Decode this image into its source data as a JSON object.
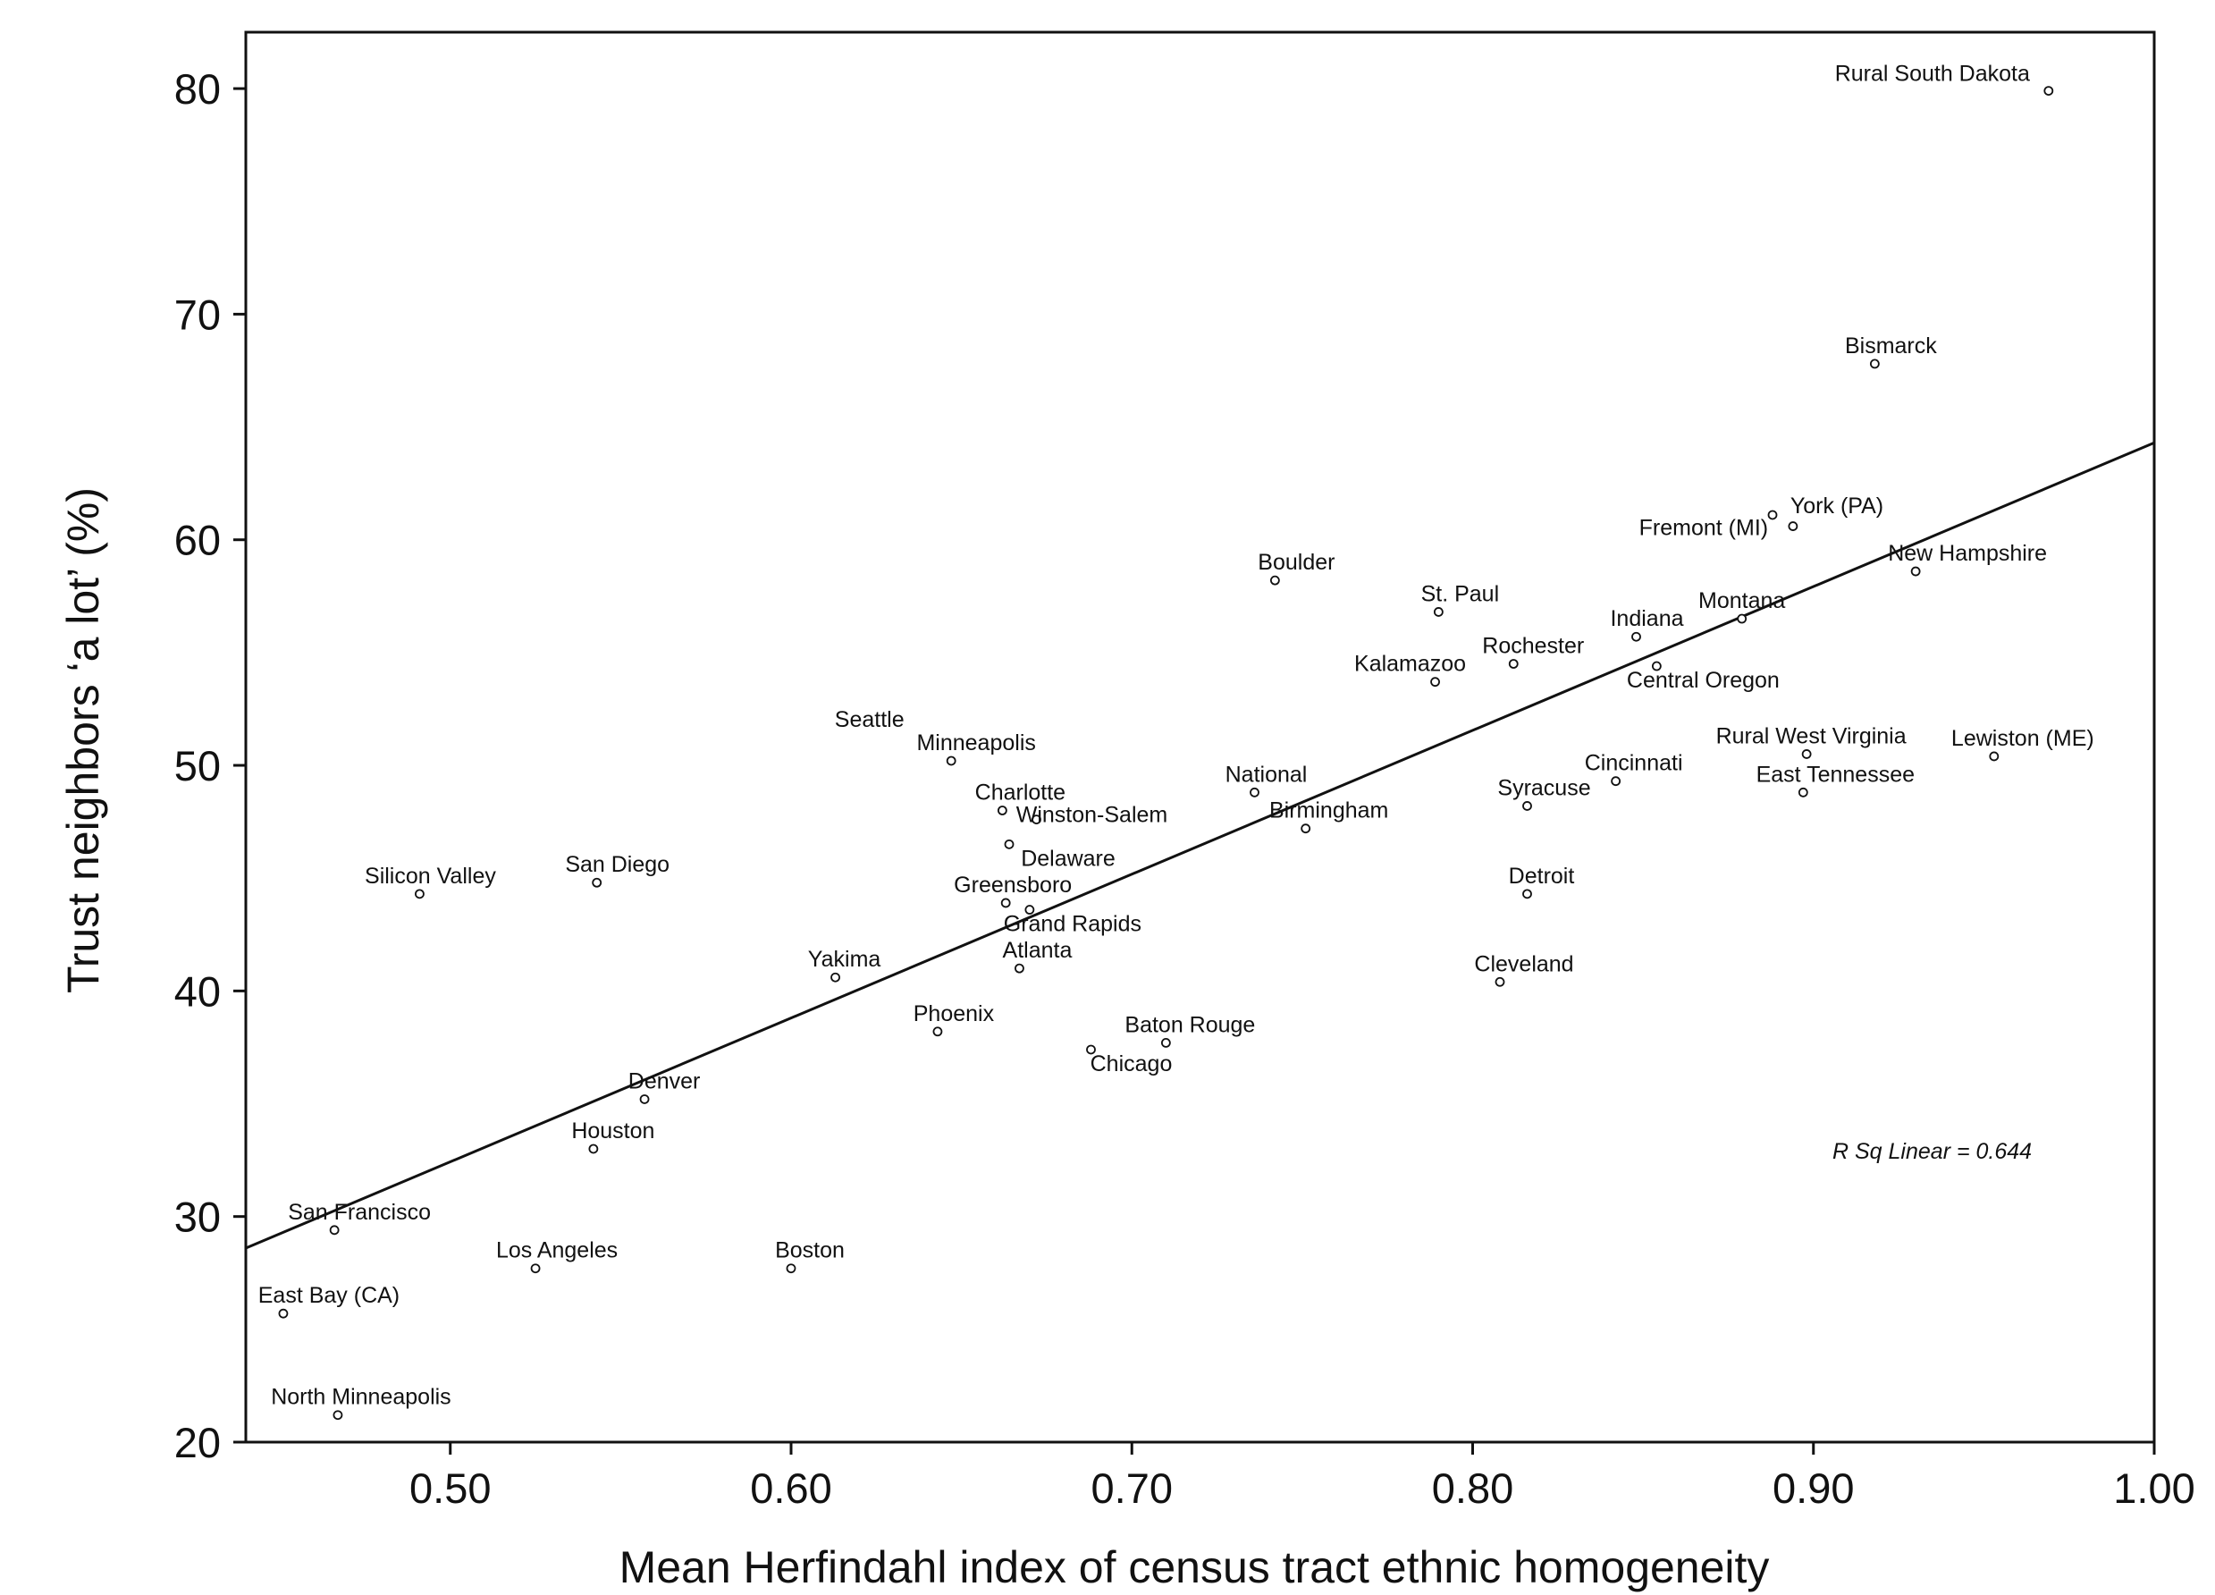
{
  "chart_data": {
    "type": "scatter",
    "xlabel": "Mean Herfindahl index of census tract ethnic homogeneity",
    "ylabel": "Trust neighbors ‘a lot’ (%)",
    "xlim": [
      0.44,
      1.0
    ],
    "ylim": [
      20,
      82.5
    ],
    "x_ticks": [
      0.5,
      0.6,
      0.7,
      0.8,
      0.9,
      1.0
    ],
    "x_tick_labels": [
      "0.50",
      "0.60",
      "0.70",
      "0.80",
      "0.90",
      "1.00"
    ],
    "y_ticks": [
      20,
      30,
      40,
      50,
      60,
      70,
      80
    ],
    "y_tick_labels": [
      "20",
      "30",
      "40",
      "50",
      "60",
      "70",
      "80"
    ],
    "grid": false,
    "legend": "none",
    "annotation": "R Sq Linear = 0.644",
    "fit_line": {
      "x": [
        0.44,
        1.0
      ],
      "y": [
        28.6,
        64.3
      ]
    },
    "points": [
      {
        "label": "Rural South Dakota",
        "x": 0.969,
        "y": 79.9
      },
      {
        "label": "Bismarck",
        "x": 0.918,
        "y": 67.8
      },
      {
        "label": "York (PA)",
        "x": 0.888,
        "y": 61.1
      },
      {
        "label": "Fremont (MI)",
        "x": 0.894,
        "y": 60.6
      },
      {
        "label": "New Hampshire",
        "x": 0.93,
        "y": 58.6
      },
      {
        "label": "Montana",
        "x": 0.879,
        "y": 56.5
      },
      {
        "label": "Boulder",
        "x": 0.742,
        "y": 58.2
      },
      {
        "label": "St. Paul",
        "x": 0.79,
        "y": 56.8
      },
      {
        "label": "Indiana",
        "x": 0.848,
        "y": 55.7
      },
      {
        "label": "Rochester",
        "x": 0.812,
        "y": 54.5
      },
      {
        "label": "Central Oregon",
        "x": 0.854,
        "y": 54.4
      },
      {
        "label": "Kalamazoo",
        "x": 0.789,
        "y": 53.7
      },
      {
        "label": "Seattle",
        "x": 0.623,
        "y": 51.7
      },
      {
        "label": "Minneapolis",
        "x": 0.647,
        "y": 50.2
      },
      {
        "label": "Rural West Virginia",
        "x": 0.898,
        "y": 50.5
      },
      {
        "label": "Lewiston (ME)",
        "x": 0.953,
        "y": 50.4
      },
      {
        "label": "Cincinnati",
        "x": 0.842,
        "y": 49.3
      },
      {
        "label": "National",
        "x": 0.736,
        "y": 48.8
      },
      {
        "label": "East Tennessee",
        "x": 0.897,
        "y": 48.8
      },
      {
        "label": "Syracuse",
        "x": 0.816,
        "y": 48.2
      },
      {
        "label": "Charlotte",
        "x": 0.662,
        "y": 48.0
      },
      {
        "label": "Winston-Salem",
        "x": 0.672,
        "y": 47.6
      },
      {
        "label": "Birmingham",
        "x": 0.751,
        "y": 47.2
      },
      {
        "label": "Delaware",
        "x": 0.664,
        "y": 46.5
      },
      {
        "label": "San Diego",
        "x": 0.543,
        "y": 44.8
      },
      {
        "label": "Silicon Valley",
        "x": 0.491,
        "y": 44.3
      },
      {
        "label": "Detroit",
        "x": 0.816,
        "y": 44.3
      },
      {
        "label": "Greensboro",
        "x": 0.663,
        "y": 43.9
      },
      {
        "label": "Grand Rapids",
        "x": 0.67,
        "y": 43.6
      },
      {
        "label": "Atlanta",
        "x": 0.667,
        "y": 41.0
      },
      {
        "label": "Yakima",
        "x": 0.613,
        "y": 40.6
      },
      {
        "label": "Cleveland",
        "x": 0.808,
        "y": 40.4
      },
      {
        "label": "Phoenix",
        "x": 0.643,
        "y": 38.2
      },
      {
        "label": "Baton Rouge",
        "x": 0.71,
        "y": 37.7
      },
      {
        "label": "Chicago",
        "x": 0.688,
        "y": 37.4
      },
      {
        "label": "Denver",
        "x": 0.557,
        "y": 35.2
      },
      {
        "label": "Houston",
        "x": 0.542,
        "y": 33.0
      },
      {
        "label": "San Francisco",
        "x": 0.466,
        "y": 29.4
      },
      {
        "label": "Los Angeles",
        "x": 0.525,
        "y": 27.7
      },
      {
        "label": "Boston",
        "x": 0.6,
        "y": 27.7
      },
      {
        "label": "East Bay (CA)",
        "x": 0.451,
        "y": 25.7
      },
      {
        "label": "North Minneapolis",
        "x": 0.467,
        "y": 21.2
      }
    ]
  }
}
